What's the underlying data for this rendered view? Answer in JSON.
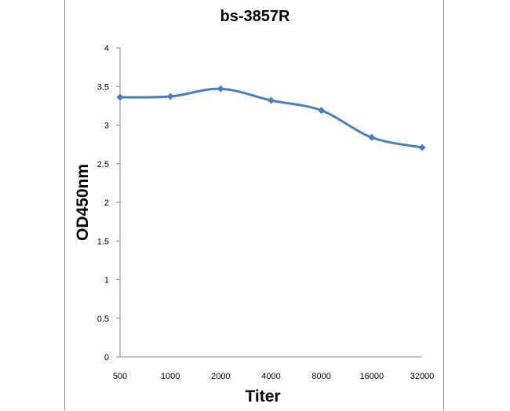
{
  "chart_data": {
    "type": "line",
    "title": "bs-3857R",
    "xlabel": "Titer",
    "ylabel": "OD450nm",
    "categories": [
      "500",
      "1000",
      "2000",
      "4000",
      "8000",
      "16000",
      "32000"
    ],
    "series": [
      {
        "values": [
          3.36,
          3.37,
          3.47,
          3.32,
          3.19,
          2.84,
          2.71
        ]
      }
    ],
    "ylim": [
      0,
      4
    ],
    "yticks": [
      "0",
      "0.5",
      "1",
      "1.5",
      "2",
      "2.5",
      "3",
      "3.5",
      "4"
    ],
    "grid": false,
    "legend": "none",
    "colors": {
      "line": "#4a7ebb",
      "axis": "#868686"
    }
  }
}
